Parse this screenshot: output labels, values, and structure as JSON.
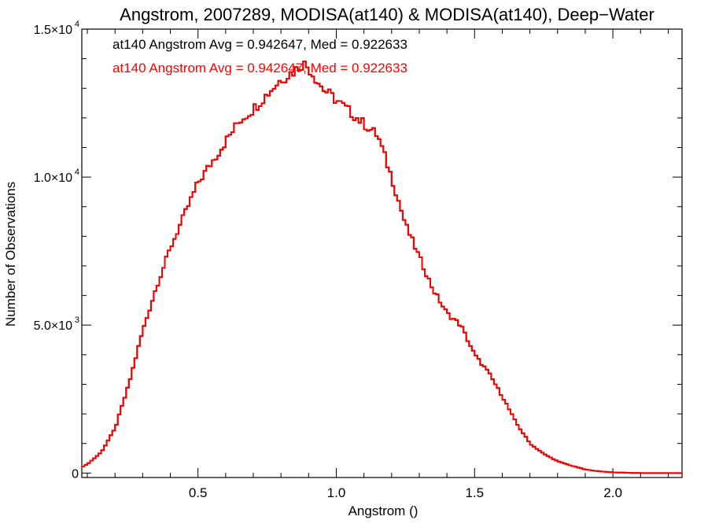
{
  "chart_data": {
    "type": "histogram-step",
    "title": "Angstrom, 2007289, MODISA(at140) & MODISA(at140), Deep−Water",
    "xlabel": "Angstrom ()",
    "ylabel": "Number of Observations",
    "xlim": [
      0.08,
      2.25
    ],
    "ylim": [
      -150,
      15000
    ],
    "x_ticks": [
      0.5,
      1.0,
      1.5,
      2.0
    ],
    "x_tick_labels": [
      "0.5",
      "1.0",
      "1.5",
      "2.0"
    ],
    "y_ticks": [
      0,
      5000,
      10000,
      15000
    ],
    "y_tick_labels": [
      {
        "mant": "0",
        "exp": ""
      },
      {
        "mant": "5.0×10",
        "exp": "3"
      },
      {
        "mant": "1.0×10",
        "exp": "4"
      },
      {
        "mant": "1.5×10",
        "exp": "4"
      }
    ],
    "bin_width": 0.01,
    "annotations": [
      {
        "text": "at140 Angstrom Avg = 0.942647, Med = 0.922633",
        "color": "#000000"
      },
      {
        "text": "at140 Angstrom Avg = 0.942647, Med = 0.922633",
        "color": "#ff0000"
      }
    ],
    "series": [
      {
        "color": "#000000",
        "x": [
          0.08,
          0.1,
          0.15,
          0.2,
          0.25,
          0.3,
          0.35,
          0.4,
          0.45,
          0.5,
          0.55,
          0.6,
          0.65,
          0.7,
          0.75,
          0.8,
          0.85,
          0.88,
          0.9,
          0.95,
          1.0,
          1.05,
          1.1,
          1.15,
          1.2,
          1.25,
          1.3,
          1.35,
          1.4,
          1.45,
          1.5,
          1.55,
          1.6,
          1.65,
          1.7,
          1.75,
          1.8,
          1.85,
          1.9,
          1.95,
          2.0,
          2.05,
          2.1,
          2.15,
          2.25
        ],
        "values": [
          200,
          300,
          700,
          1500,
          3000,
          4800,
          6300,
          7600,
          8700,
          9800,
          10500,
          11200,
          11900,
          12300,
          12800,
          13300,
          13600,
          13850,
          13700,
          13000,
          12600,
          12200,
          11800,
          11400,
          10000,
          8400,
          7300,
          6200,
          5400,
          5000,
          4000,
          3400,
          2600,
          1700,
          1000,
          650,
          400,
          250,
          120,
          60,
          25,
          10,
          0,
          0,
          0
        ]
      },
      {
        "color": "#ff0000",
        "x": [
          0.08,
          0.1,
          0.15,
          0.2,
          0.25,
          0.3,
          0.35,
          0.4,
          0.45,
          0.5,
          0.55,
          0.6,
          0.65,
          0.7,
          0.75,
          0.8,
          0.85,
          0.88,
          0.9,
          0.95,
          1.0,
          1.05,
          1.1,
          1.15,
          1.2,
          1.25,
          1.3,
          1.35,
          1.4,
          1.45,
          1.5,
          1.55,
          1.6,
          1.65,
          1.7,
          1.75,
          1.8,
          1.85,
          1.9,
          1.95,
          2.0,
          2.05,
          2.1,
          2.15,
          2.25
        ],
        "values": [
          200,
          300,
          700,
          1500,
          3000,
          4800,
          6300,
          7600,
          8700,
          9800,
          10500,
          11200,
          11900,
          12300,
          12800,
          13300,
          13600,
          13850,
          13700,
          13000,
          12600,
          12200,
          11800,
          11400,
          10000,
          8400,
          7300,
          6200,
          5400,
          5000,
          4000,
          3400,
          2600,
          1700,
          1000,
          650,
          400,
          250,
          120,
          60,
          25,
          10,
          0,
          0,
          0
        ]
      }
    ]
  }
}
